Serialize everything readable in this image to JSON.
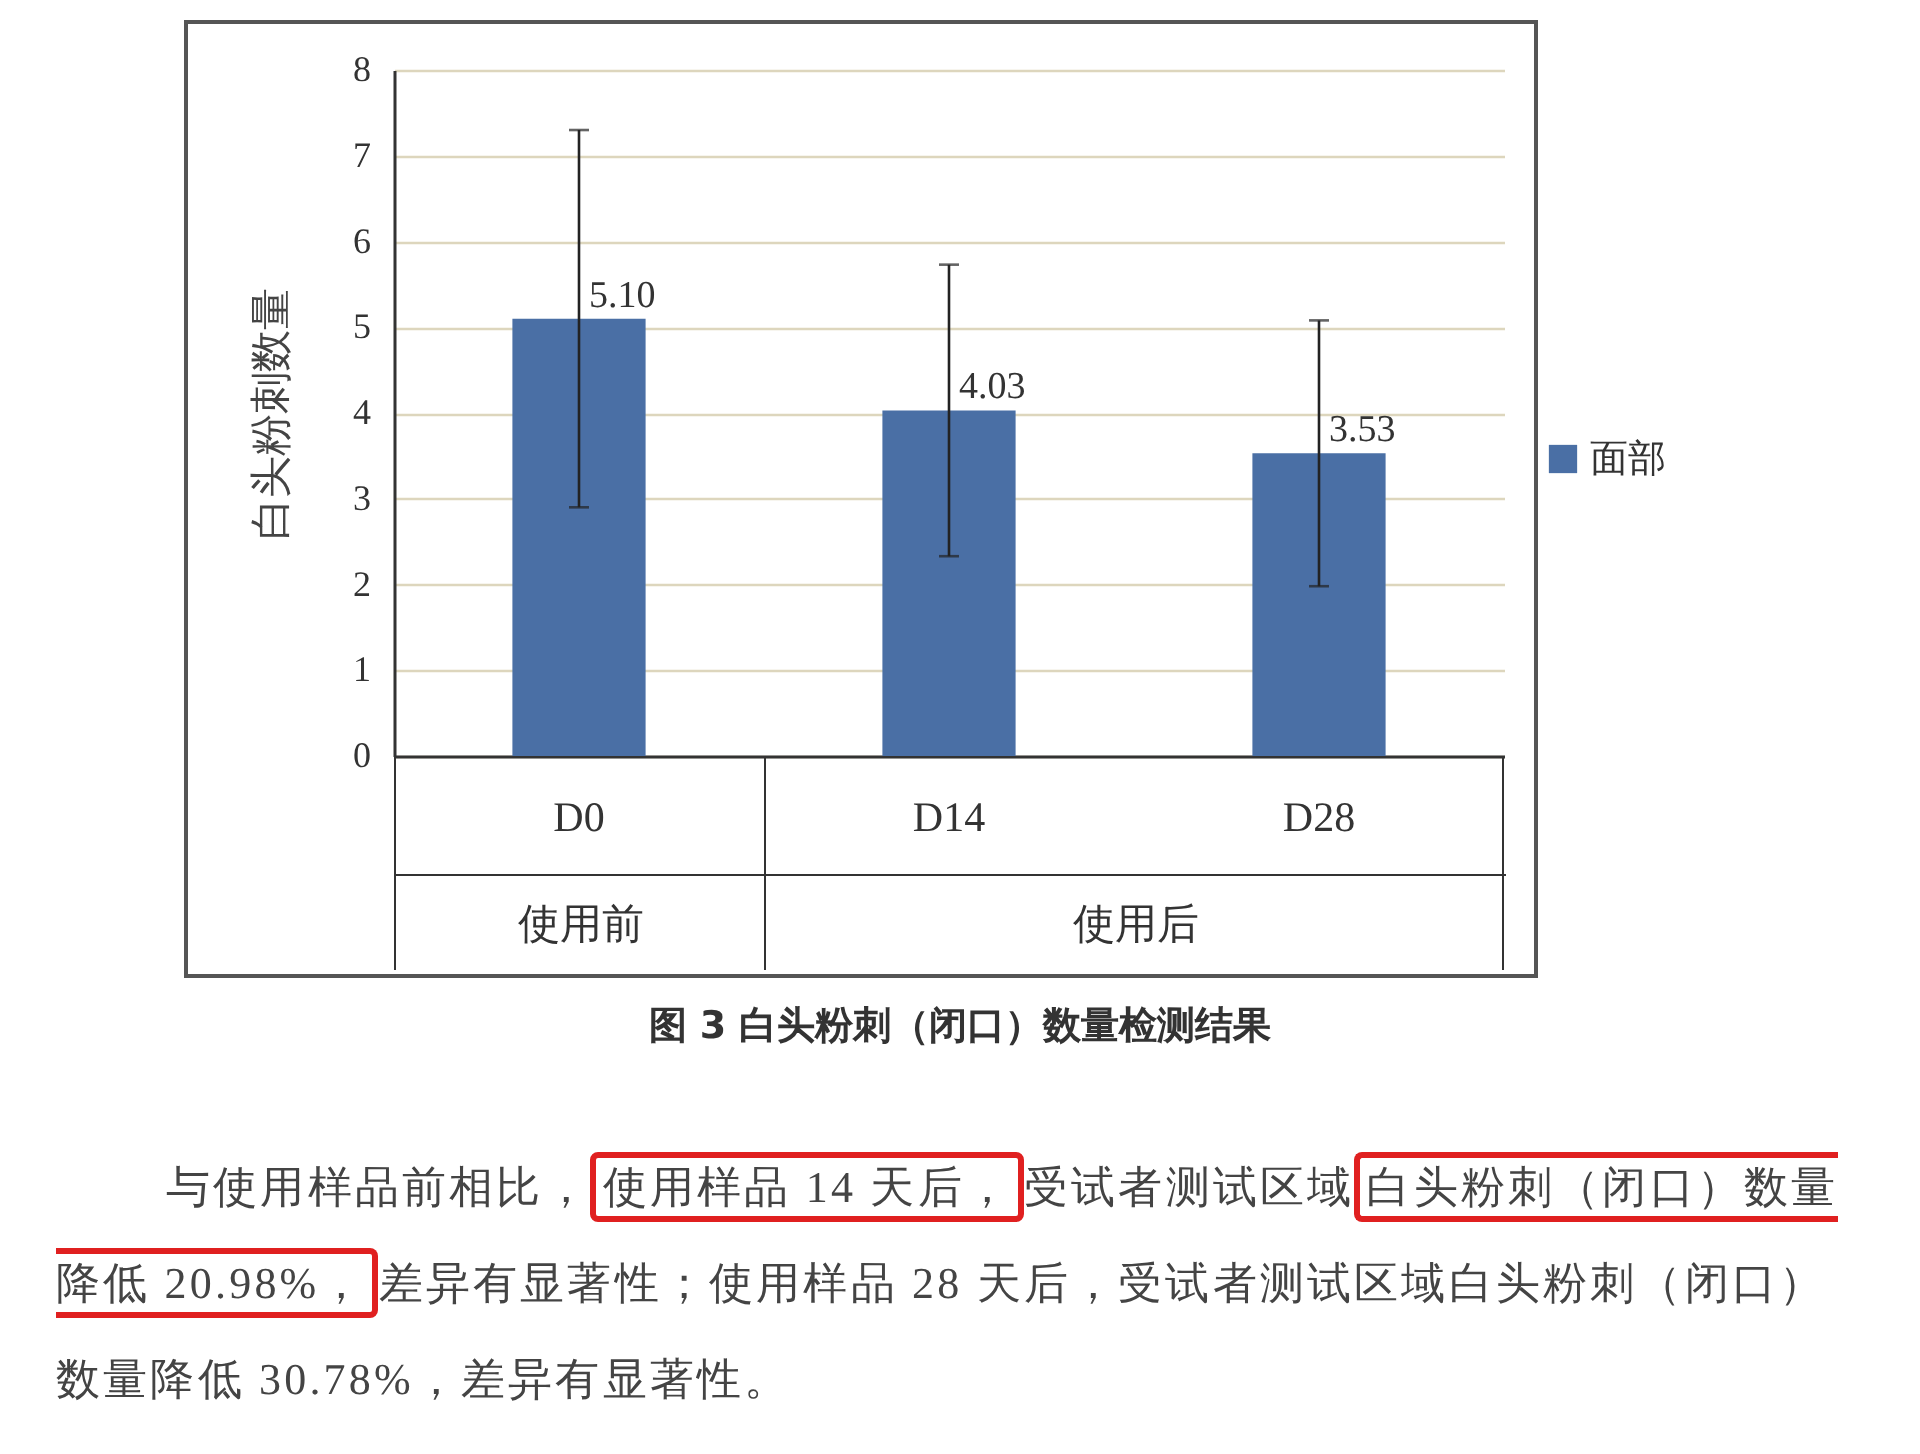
{
  "chart_data": {
    "type": "bar",
    "title": "图 3  白头粉刺（闭口）数量检测结果",
    "ylabel": "白头粉刺数量",
    "categories": [
      "D0",
      "D14",
      "D28"
    ],
    "series": [
      {
        "name": "面部",
        "color": "#4a6fa5",
        "values": [
          5.1,
          4.03,
          3.53
        ],
        "errors": [
          2.2,
          1.7,
          1.55
        ],
        "value_labels": [
          "5.10",
          "4.03",
          "3.53"
        ]
      }
    ],
    "ylim": [
      0,
      8
    ],
    "yticks": [
      0,
      1,
      2,
      3,
      4,
      5,
      6,
      7,
      8
    ],
    "grid": "y",
    "legend": "right",
    "annotations": [
      "使用前",
      "使用后",
      "与使用样品前相比，",
      "使用样品 14 天后，",
      "受试者测试区域",
      "白头粉刺（闭口）数量降低 20.98%，",
      "差异有显著性；使用样品 28 天后，受试者测试区域白头粉刺（闭口）数量降低 30.78%，差异有显著性。"
    ]
  }
}
